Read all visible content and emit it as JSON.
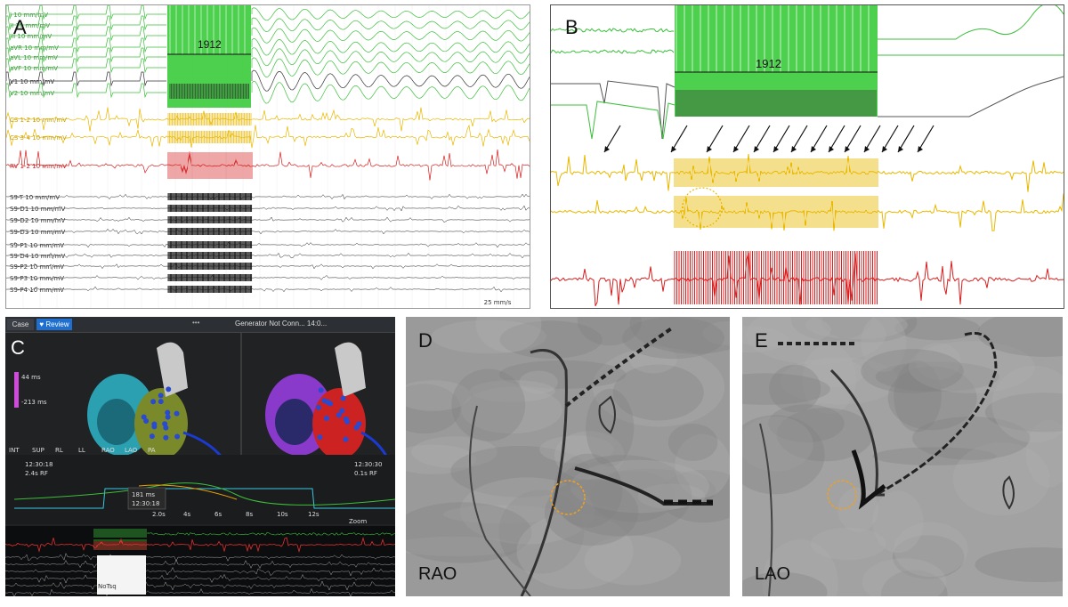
{
  "figure": {
    "panels": {
      "A": {
        "label": "A",
        "box_label": "1912",
        "speed": "25 mm/s",
        "surface_leads": [
          "I 10 mm/mV",
          "II 10 mm/mV",
          "III 10 mm/mV",
          "aVR 10 mm/mV",
          "aVL 10 mm/mV",
          "aVF 10 mm/mV",
          "V1 10 mm/mV",
          "V2 10 mm/mV"
        ],
        "cs_leads": [
          "CS 1-2 10 mm/mV",
          "CS 3-4 10 mm/mV"
        ],
        "rv_lead": "RV 1-2 10 mm/mV",
        "catheter_leads": [
          "S9-T 10 mm/mV",
          "S9-D1 10 mm/mV",
          "S9-D2 10 mm/mV",
          "S9-D3 10 mm/mV",
          "S9-P1 10 mm/mV",
          "S9-D4 10 mm/mV",
          "S9-P2 10 mm/mV",
          "S9-P3 10 mm/mV",
          "S9-P4 10 mm/mV"
        ]
      },
      "B": {
        "label": "B",
        "box_label": "1912"
      },
      "C": {
        "label": "C",
        "btn_case": "Case",
        "btn_review": "Review",
        "status": "Generator Not Conn... 14:0...",
        "dots": "•••",
        "scale_top": "44 ms",
        "scale_bottom": "-213 ms",
        "time_left": "12:30:18",
        "rf_left": "2.4s RF",
        "time_right": "12:30:30",
        "rf_right": "0.1s RF",
        "meas": "181 ms",
        "meas_time": "12:30:18",
        "axis_ticks": [
          "2.0s",
          "4s",
          "6s",
          "8s",
          "10s",
          "12s"
        ],
        "views": [
          "INT",
          "SUP",
          "RL",
          "LL",
          "RAO",
          "LAO",
          "PA"
        ],
        "zoom": "Zoom",
        "tag": "NoTsq"
      },
      "D": {
        "label": "D",
        "view": "RAO"
      },
      "E": {
        "label": "E",
        "view": "LAO"
      }
    }
  },
  "colors": {
    "ecg_green": "#3cbf3c",
    "cs_yellow": "#e8b800",
    "rv_red": "#d42020",
    "cath_black": "#111111",
    "circle_orange": "#f0a020"
  }
}
